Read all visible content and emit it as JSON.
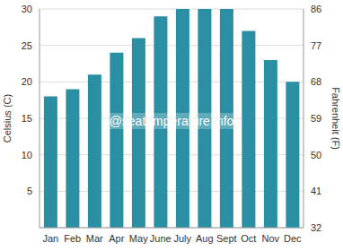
{
  "chart_data": {
    "type": "bar",
    "categories": [
      "Jan",
      "Feb",
      "Mar",
      "Apr",
      "May",
      "June",
      "July",
      "Aug",
      "Sept",
      "Oct",
      "Nov",
      "Dec"
    ],
    "values": [
      18,
      19,
      21,
      24,
      26,
      29,
      30,
      30,
      30,
      27,
      23,
      20
    ],
    "color": "#2a8fa3",
    "ylabel": "Celsius (C)",
    "y2label": "Fahrenheit (F)",
    "ylim": [
      0,
      30
    ],
    "yticks": [
      5,
      10,
      15,
      20,
      25,
      30
    ],
    "y2lim": [
      32,
      86
    ],
    "y2ticks": [
      32,
      41,
      50,
      59,
      68,
      77,
      86
    ],
    "grid": true,
    "annotation": "@seatemperature.info"
  }
}
